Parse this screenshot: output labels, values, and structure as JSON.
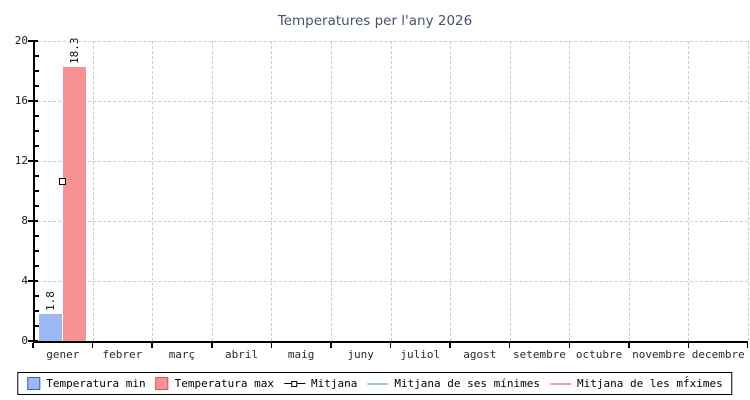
{
  "chart_data": {
    "type": "bar",
    "title": "Temperatures per l'any 2026",
    "categories": [
      "gener",
      "febrer",
      "març",
      "abril",
      "maig",
      "juny",
      "juliol",
      "agost",
      "setembre",
      "octubre",
      "novembre",
      "decembre"
    ],
    "series": [
      {
        "name": "Temperatura min",
        "kind": "bar",
        "values": [
          1.8,
          null,
          null,
          null,
          null,
          null,
          null,
          null,
          null,
          null,
          null,
          null
        ],
        "fill": "#9db9f4",
        "border": "#3c5ed2"
      },
      {
        "name": "Temperatura max",
        "kind": "bar",
        "values": [
          18.3,
          null,
          null,
          null,
          null,
          null,
          null,
          null,
          null,
          null,
          null,
          null
        ],
        "fill": "#f89292",
        "border": "#e05656"
      },
      {
        "name": "Mitjana",
        "kind": "point",
        "values": [
          10.6,
          null,
          null,
          null,
          null,
          null,
          null,
          null,
          null,
          null,
          null,
          null
        ],
        "color": "#000000",
        "marker": "open-square"
      },
      {
        "name": "Mitjana de ses mínimes",
        "kind": "line",
        "values": [
          null,
          null,
          null,
          null,
          null,
          null,
          null,
          null,
          null,
          null,
          null,
          null
        ],
        "color": "#a2c6e6"
      },
      {
        "name": "Mitjana de les mf́ximes",
        "kind": "line",
        "values": [
          null,
          null,
          null,
          null,
          null,
          null,
          null,
          null,
          null,
          null,
          null,
          null
        ],
        "color": "#f3a4a4"
      }
    ],
    "ylim": [
      0,
      20
    ],
    "y_ticks": [
      0,
      4,
      8,
      12,
      16,
      20
    ],
    "y_minor_step": 1,
    "bar_value_labels": [
      "1.8",
      "18.3"
    ],
    "grid": true,
    "legend_position": "bottom"
  }
}
